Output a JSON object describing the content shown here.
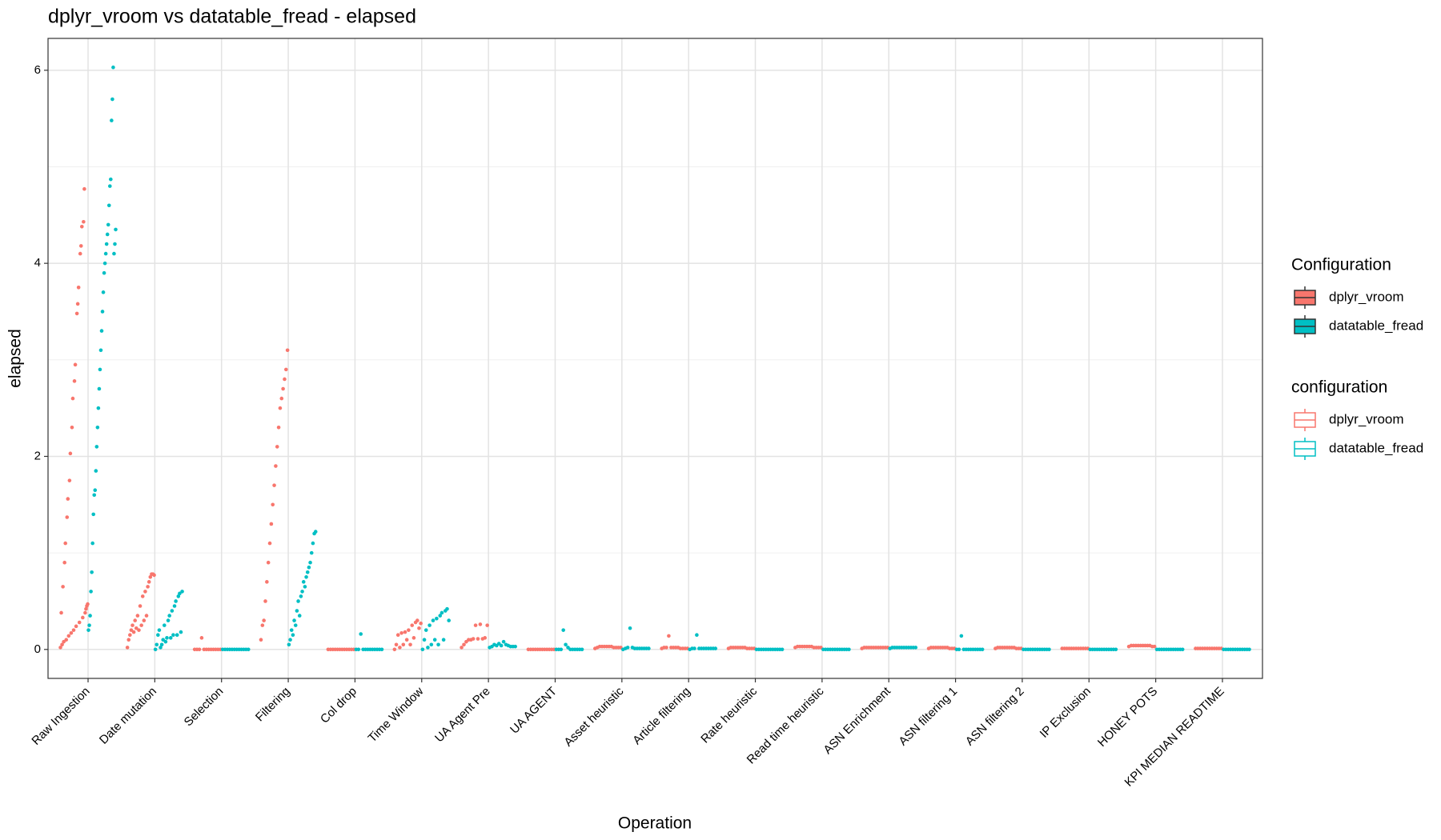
{
  "chart_data": {
    "type": "strip",
    "title": "dplyr_vroom vs datatable_fread - elapsed",
    "x_label": "Operation",
    "y_label": "elapsed",
    "categories": [
      "Raw Ingestion",
      "Date mutation",
      "Selection",
      "Filtering",
      "Col drop",
      "Time Window",
      "UA Agent Pre",
      "UA AGENT",
      "Asset heuristic",
      "Article filtering",
      "Rate heuristic",
      "Read time heuristic",
      "ASN Enrichment",
      "ASN filtering 1",
      "ASN filtering 2",
      "IP Exclusion",
      "HONEY POTS",
      "KPI MEDIAN READTIME"
    ],
    "ylim": [
      -0.3,
      6.33
    ],
    "yticks": [
      0,
      2,
      4,
      6
    ],
    "minor_yticks": [
      1,
      3,
      5
    ],
    "grid": true,
    "legend_titles": [
      "Configuration",
      "configuration"
    ],
    "series": [
      {
        "name": "dplyr_vroom",
        "color": "#F8766D",
        "values": [
          [
            0.02,
            0.38,
            0.05,
            0.65,
            0.08,
            0.9,
            1.1,
            0.1,
            1.37,
            1.56,
            0.14,
            1.75,
            2.03,
            0.17,
            2.3,
            2.6,
            0.2,
            2.78,
            2.95,
            0.24,
            3.48,
            3.58,
            3.75,
            0.28,
            4.1,
            4.18,
            4.38,
            0.33,
            4.43,
            4.77,
            0.38,
            0.42,
            0.45,
            0.47
          ],
          [
            0.02,
            0.1,
            0.15,
            0.2,
            0.25,
            0.18,
            0.3,
            0.22,
            0.35,
            0.2,
            0.45,
            0.25,
            0.55,
            0.3,
            0.6,
            0.35,
            0.65,
            0.7,
            0.75,
            0.78,
            0.78,
            0.77
          ],
          [
            0,
            0,
            0,
            0.12,
            0,
            0,
            0,
            0,
            0,
            0,
            0,
            0
          ],
          [
            0.1,
            0.25,
            0.3,
            0.5,
            0.7,
            0.9,
            1.1,
            1.3,
            1.5,
            1.7,
            1.9,
            2.1,
            2.3,
            2.5,
            2.6,
            2.7,
            2.8,
            2.9,
            3.1
          ],
          [
            0,
            0,
            0,
            0,
            0,
            0,
            0,
            0,
            0,
            0,
            0,
            0
          ],
          [
            0,
            0.05,
            0.15,
            0.02,
            0.17,
            0.05,
            0.18,
            0.1,
            0.2,
            0.05,
            0.25,
            0.12,
            0.28,
            0.3,
            0.22,
            0.27
          ],
          [
            0.02,
            0.05,
            0.08,
            0.1,
            0.1,
            0.11,
            0.25,
            0.11,
            0.26,
            0.11,
            0.12,
            0.25
          ],
          [
            0,
            0,
            0,
            0,
            0,
            0,
            0,
            0,
            0,
            0,
            0,
            0
          ],
          [
            0.01,
            0.02,
            0.03,
            0.03,
            0.03,
            0.03,
            0.03,
            0.03,
            0.02,
            0.02,
            0.02,
            0.02
          ],
          [
            0.01,
            0.02,
            0.02,
            0.14,
            0.02,
            0.02,
            0.02,
            0.02,
            0.01,
            0.01,
            0.01,
            0.01
          ],
          [
            0.01,
            0.02,
            0.02,
            0.02,
            0.02,
            0.02,
            0.02,
            0.02,
            0.01,
            0.01,
            0.01,
            0.01
          ],
          [
            0.02,
            0.03,
            0.03,
            0.03,
            0.03,
            0.03,
            0.03,
            0.03,
            0.02,
            0.02,
            0.02,
            0.02
          ],
          [
            0.01,
            0.02,
            0.02,
            0.02,
            0.02,
            0.02,
            0.02,
            0.02,
            0.02,
            0.02,
            0.02,
            0.02
          ],
          [
            0.01,
            0.02,
            0.02,
            0.02,
            0.02,
            0.02,
            0.02,
            0.02,
            0.02,
            0.01,
            0.01,
            0.01
          ],
          [
            0.01,
            0.02,
            0.02,
            0.02,
            0.02,
            0.02,
            0.02,
            0.02,
            0.02,
            0.01,
            0.01,
            0.01
          ],
          [
            0.01,
            0.01,
            0.01,
            0.01,
            0.01,
            0.01,
            0.01,
            0.01,
            0.01,
            0.01,
            0.01,
            0.01
          ],
          [
            0.03,
            0.04,
            0.04,
            0.04,
            0.04,
            0.04,
            0.04,
            0.04,
            0.04,
            0.04,
            0.03,
            0.03
          ],
          [
            0.01,
            0.01,
            0.01,
            0.01,
            0.01,
            0.01,
            0.01,
            0.01,
            0.01,
            0.01,
            0.01,
            0.01
          ]
        ]
      },
      {
        "name": "datatable_fread",
        "color": "#00BFC4",
        "values": [
          [
            0.2,
            0.25,
            0.35,
            0.6,
            0.8,
            1.1,
            1.4,
            1.6,
            1.65,
            1.85,
            2.1,
            2.3,
            2.5,
            2.7,
            2.9,
            3.1,
            3.3,
            3.5,
            3.7,
            3.9,
            4.0,
            4.1,
            4.2,
            4.3,
            4.4,
            4.6,
            4.8,
            4.87,
            5.48,
            5.7,
            6.03,
            4.1,
            4.2,
            4.35
          ],
          [
            0,
            0.05,
            0.15,
            0.2,
            0.02,
            0.05,
            0.1,
            0.25,
            0.08,
            0.12,
            0.3,
            0.35,
            0.12,
            0.4,
            0.15,
            0.45,
            0.5,
            0.15,
            0.55,
            0.58,
            0.18,
            0.6
          ],
          [
            0,
            0,
            0,
            0,
            0,
            0,
            0,
            0,
            0,
            0,
            0,
            0
          ],
          [
            0.05,
            0.1,
            0.2,
            0.15,
            0.3,
            0.25,
            0.4,
            0.5,
            0.35,
            0.55,
            0.6,
            0.7,
            0.65,
            0.75,
            0.8,
            0.85,
            0.9,
            1.0,
            1.1,
            1.2,
            1.22
          ],
          [
            0,
            0,
            0.16,
            0,
            0,
            0,
            0,
            0,
            0,
            0,
            0,
            0
          ],
          [
            0,
            0.1,
            0.2,
            0.02,
            0.25,
            0.05,
            0.3,
            0.1,
            0.32,
            0.05,
            0.35,
            0.38,
            0.1,
            0.4,
            0.42,
            0.3
          ],
          [
            0.02,
            0.03,
            0.05,
            0.04,
            0.06,
            0.04,
            0.08,
            0.05,
            0.04,
            0.03,
            0.03,
            0.03
          ],
          [
            0,
            0,
            0,
            0.2,
            0.05,
            0.02,
            0,
            0,
            0,
            0,
            0,
            0
          ],
          [
            0,
            0.01,
            0.02,
            0.22,
            0.02,
            0.01,
            0.01,
            0.01,
            0.01,
            0.01,
            0.01,
            0.01
          ],
          [
            0,
            0.01,
            0.01,
            0.15,
            0.01,
            0.01,
            0.01,
            0.01,
            0.01,
            0.01,
            0.01,
            0.01
          ],
          [
            0,
            0,
            0,
            0,
            0,
            0,
            0,
            0,
            0,
            0,
            0,
            0
          ],
          [
            0,
            0,
            0,
            0,
            0,
            0,
            0,
            0,
            0,
            0,
            0,
            0
          ],
          [
            0.01,
            0.02,
            0.02,
            0.02,
            0.02,
            0.02,
            0.02,
            0.02,
            0.02,
            0.02,
            0.02,
            0.02
          ],
          [
            0,
            0,
            0.14,
            0,
            0,
            0,
            0,
            0,
            0,
            0,
            0,
            0
          ],
          [
            0,
            0,
            0,
            0,
            0,
            0,
            0,
            0,
            0,
            0,
            0,
            0
          ],
          [
            0,
            0,
            0,
            0,
            0,
            0,
            0,
            0,
            0,
            0,
            0,
            0
          ],
          [
            0,
            0,
            0,
            0,
            0,
            0,
            0,
            0,
            0,
            0,
            0,
            0
          ],
          [
            0,
            0,
            0,
            0,
            0,
            0,
            0,
            0,
            0,
            0,
            0,
            0
          ]
        ]
      }
    ]
  }
}
